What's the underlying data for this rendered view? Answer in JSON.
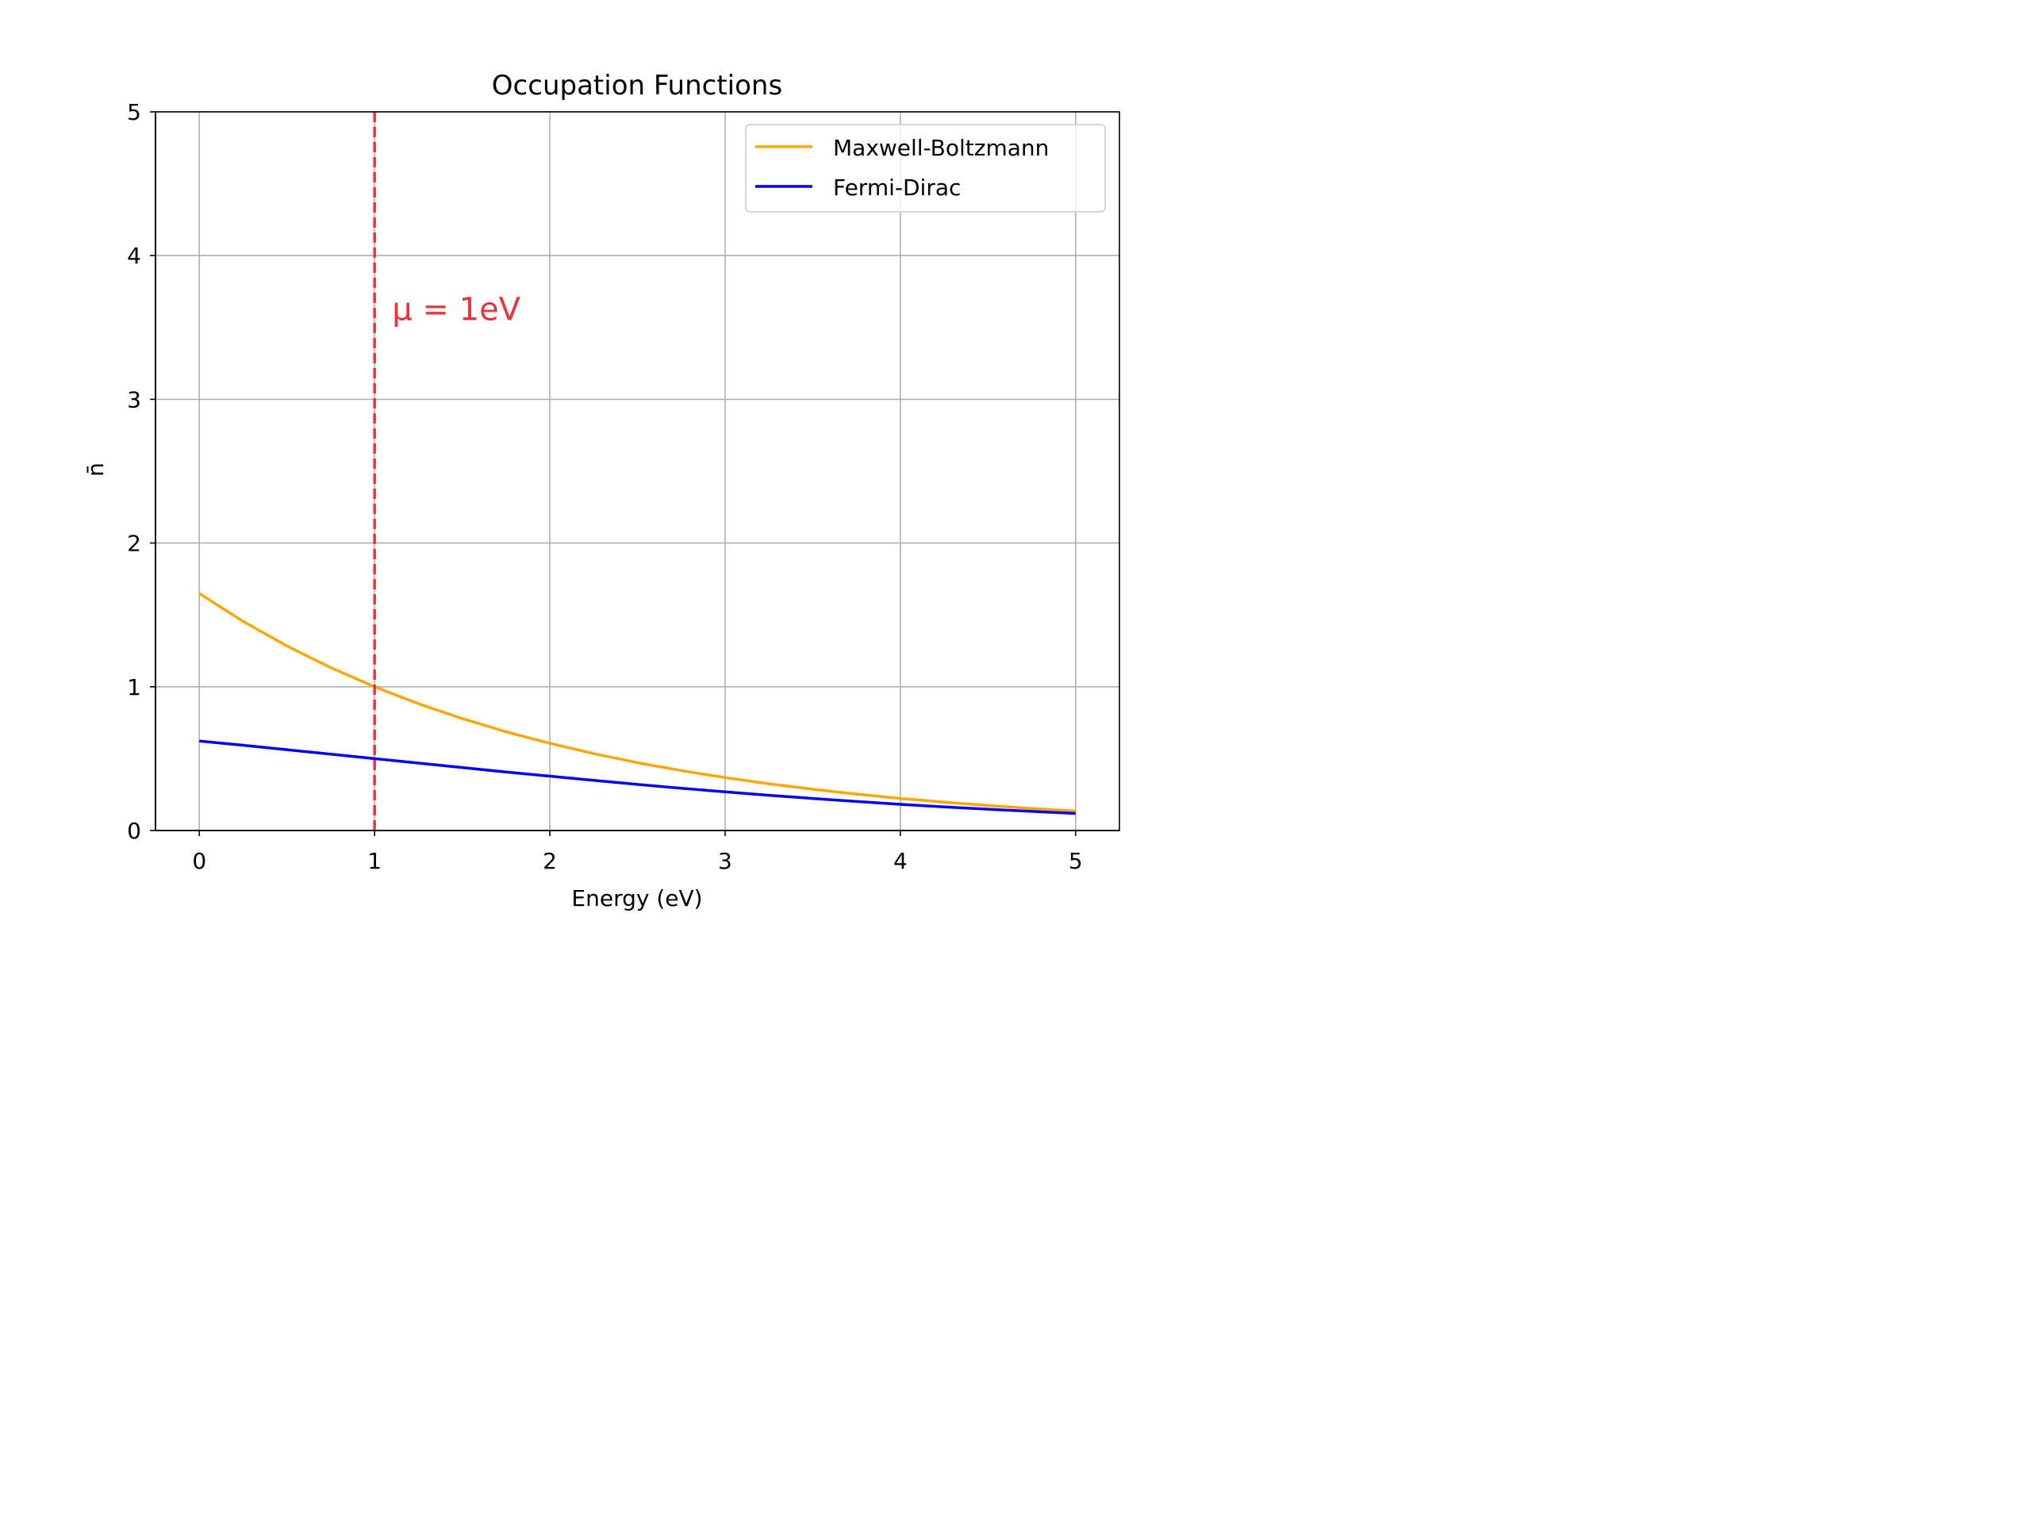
{
  "chart_data": {
    "type": "line",
    "title": "Occupation Functions",
    "xlabel": "Energy (eV)",
    "ylabel": "n̄",
    "xlim": [
      -0.25,
      5.25
    ],
    "ylim": [
      0,
      5
    ],
    "x_ticks": [
      0,
      1,
      2,
      3,
      4,
      5
    ],
    "y_ticks": [
      0,
      1,
      2,
      3,
      4,
      5
    ],
    "grid": true,
    "legend_position": "top-right",
    "series": [
      {
        "name": "Maxwell-Boltzmann",
        "color": "#FFA500",
        "x": [
          0,
          0.25,
          0.5,
          0.75,
          1,
          1.25,
          1.5,
          1.75,
          2,
          2.25,
          2.5,
          2.75,
          3,
          3.25,
          3.5,
          3.75,
          4,
          4.25,
          4.5,
          4.75,
          5
        ],
        "y": [
          1.649,
          1.455,
          1.284,
          1.133,
          1.0,
          0.882,
          0.779,
          0.687,
          0.607,
          0.535,
          0.472,
          0.417,
          0.368,
          0.325,
          0.287,
          0.253,
          0.223,
          0.197,
          0.174,
          0.153,
          0.135
        ]
      },
      {
        "name": "Fermi-Dirac",
        "color": "#0000FF",
        "x": [
          0,
          0.25,
          0.5,
          0.75,
          1,
          1.25,
          1.5,
          1.75,
          2,
          2.25,
          2.5,
          2.75,
          3,
          3.25,
          3.5,
          3.75,
          4,
          4.25,
          4.5,
          4.75,
          5
        ],
        "y": [
          0.622,
          0.593,
          0.562,
          0.531,
          0.5,
          0.469,
          0.438,
          0.407,
          0.378,
          0.349,
          0.321,
          0.294,
          0.269,
          0.245,
          0.223,
          0.202,
          0.182,
          0.164,
          0.148,
          0.133,
          0.119
        ]
      }
    ],
    "vline": {
      "x": 1,
      "color": "#E8343A",
      "label": "μ = 1eV",
      "label_x": 1.1,
      "label_y": 3.55
    }
  }
}
